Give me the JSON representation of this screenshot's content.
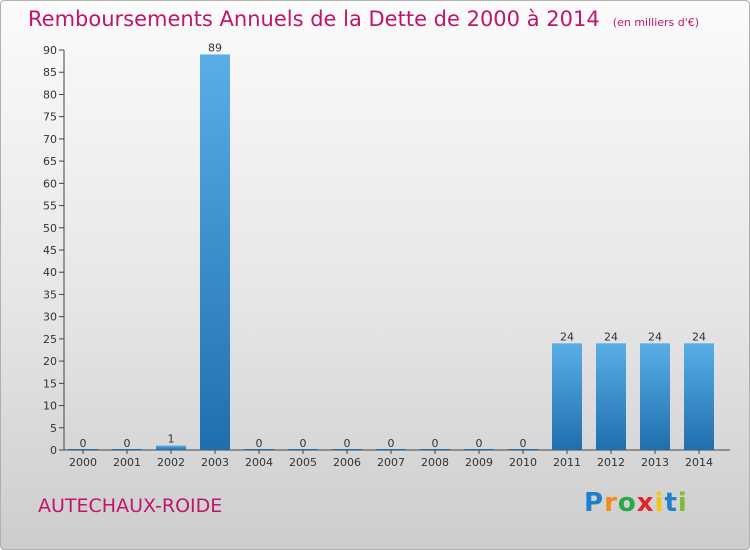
{
  "chart_data": {
    "type": "bar",
    "title": "Remboursements Annuels de la Dette de 2000 à 2014",
    "subtitle": "(en milliers d'€)",
    "categories": [
      "2000",
      "2001",
      "2002",
      "2003",
      "2004",
      "2005",
      "2006",
      "2007",
      "2008",
      "2009",
      "2010",
      "2011",
      "2012",
      "2013",
      "2014"
    ],
    "values": [
      0,
      0,
      1,
      89,
      0,
      0,
      0,
      0,
      0,
      0,
      0,
      24,
      24,
      24,
      24
    ],
    "ylim": [
      0,
      90
    ],
    "yticks": [
      0,
      5,
      10,
      15,
      20,
      25,
      30,
      35,
      40,
      45,
      50,
      55,
      60,
      65,
      70,
      75,
      80,
      85,
      90
    ],
    "xlabel": "",
    "ylabel": "",
    "grid": false,
    "bar_color_top": "#5aaee6",
    "bar_color_bottom": "#1f6fae"
  },
  "footer": {
    "commune": "AUTECHAUX-ROIDE",
    "logo_letters": [
      "P",
      "r",
      "o",
      "x",
      "i",
      "t",
      "i"
    ],
    "logo_colors": [
      "#1e7fcb",
      "#f28c1c",
      "#2aa84a",
      "#e0262a",
      "#f0c419",
      "#1e7fcb",
      "#7bbf34"
    ]
  }
}
